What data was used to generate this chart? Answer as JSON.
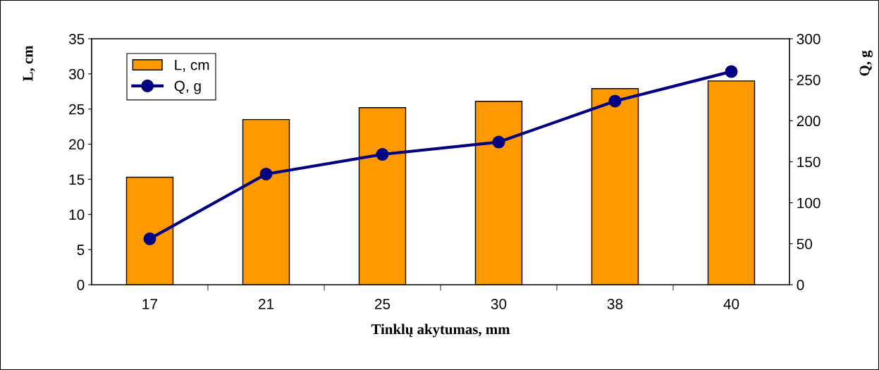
{
  "chart_data": {
    "type": "bar",
    "xlabel": "Tinklų akytumas, mm",
    "ylabel": "L, cm",
    "y2label": "Q, g",
    "categories": [
      "17",
      "21",
      "25",
      "30",
      "38",
      "40"
    ],
    "series": [
      {
        "name": "L, cm",
        "color": "#ff9900",
        "values": [
          15.3,
          23.5,
          25.2,
          26.1,
          27.9,
          29.0
        ]
      },
      {
        "name": "Q, g",
        "type": "line",
        "axis": "y2",
        "color": "#000080",
        "marker": "circle",
        "values": [
          56,
          135,
          159,
          174,
          224,
          260
        ]
      }
    ],
    "ylim": [
      0,
      35
    ],
    "yticks": [
      0,
      5,
      10,
      15,
      20,
      25,
      30,
      35
    ],
    "y2lim": [
      0,
      300
    ],
    "y2ticks": [
      0,
      50,
      100,
      150,
      200,
      250,
      300
    ],
    "grid": false,
    "legend": "top left"
  }
}
